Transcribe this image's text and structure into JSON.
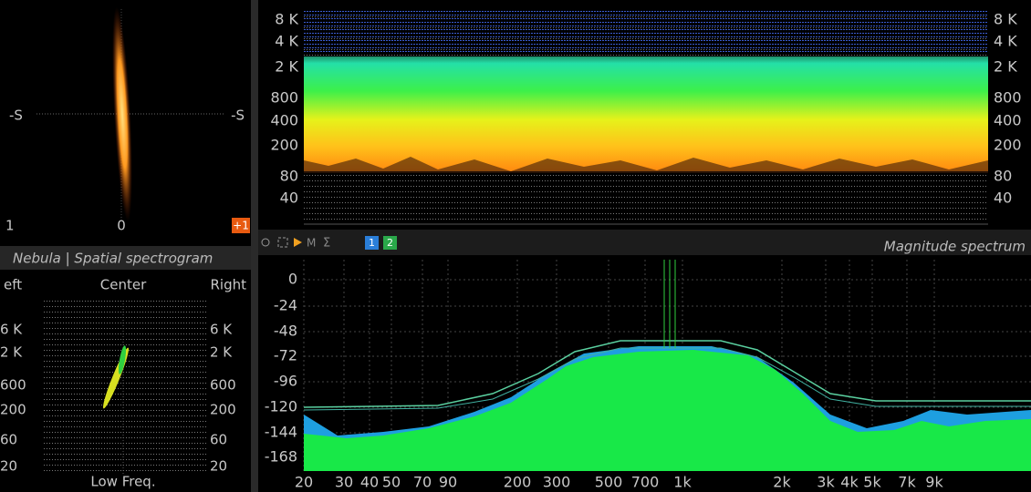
{
  "vectorscope": {
    "left_label": "-S",
    "right_label": "-S",
    "min_label": "1",
    "center_label": "0",
    "max_label": "+1"
  },
  "spectrogram": {
    "y_labels_left": [
      "8 K",
      "4 K",
      "2 K",
      "800",
      "400",
      "200",
      "80",
      "40"
    ],
    "y_labels_right": [
      "8 K",
      "4 K",
      "2 K",
      "800",
      "400",
      "200",
      "80",
      "40"
    ]
  },
  "toolbar": {
    "buttons": [
      "1",
      "2"
    ],
    "title": "Magnitude spectrum"
  },
  "spatial": {
    "title": "Nebula | Spatial spectrogram",
    "header": [
      "eft",
      "Center",
      "Right"
    ],
    "y_labels_left": [
      "6 K",
      "2 K",
      "600",
      "200",
      "60",
      "20"
    ],
    "y_labels_right": [
      "6 K",
      "2 K",
      "600",
      "200",
      "60",
      "20"
    ],
    "footer": "Low Freq."
  },
  "magnitude": {
    "y_labels": [
      "0",
      "-24",
      "-48",
      "-72",
      "-96",
      "-120",
      "-144",
      "-168"
    ],
    "x_labels": [
      "20",
      "30",
      "40",
      "50",
      "70",
      "90",
      "200",
      "300",
      "500",
      "700",
      "1k",
      "2k",
      "3k",
      "4k",
      "5k",
      "7k",
      "9k"
    ]
  }
}
